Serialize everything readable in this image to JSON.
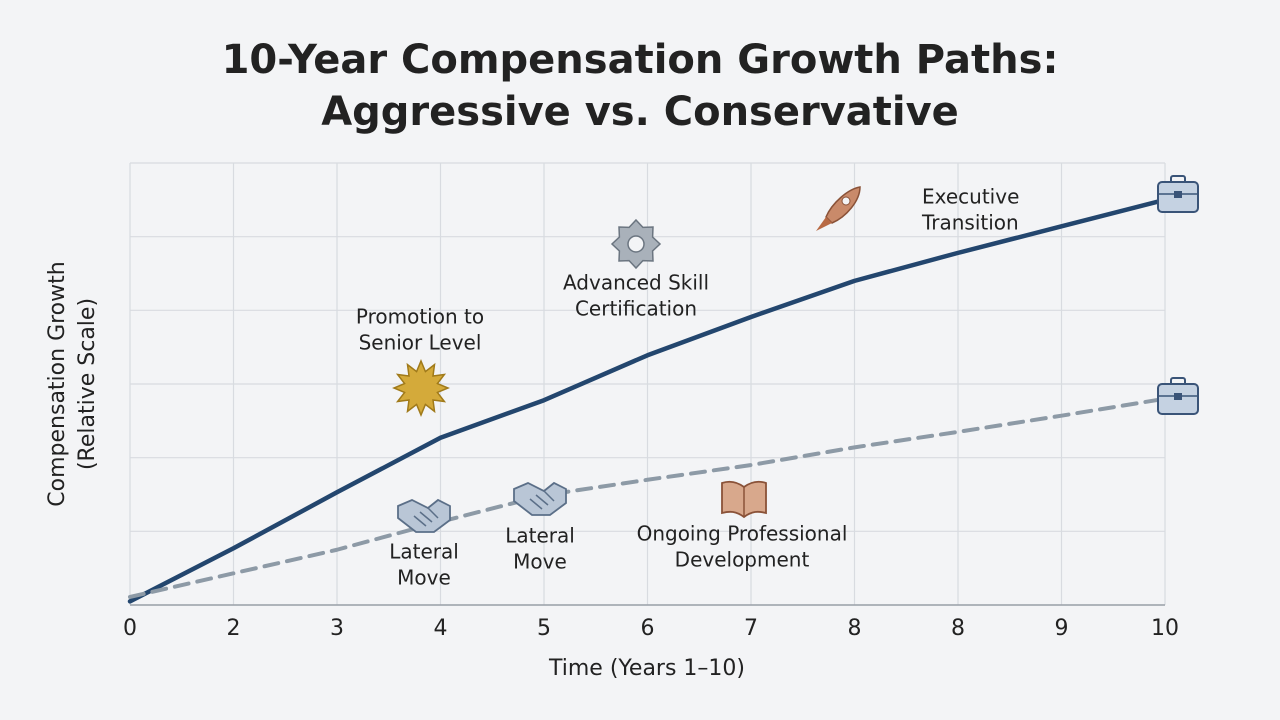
{
  "chart_data": {
    "type": "line",
    "title": [
      "10-Year Compensation Growth Paths:",
      "Aggressive vs. Conservative"
    ],
    "x_label": "Time (Years 1–10)",
    "y_label": [
      "Compensation Growth",
      "(Relative Scale)"
    ],
    "categories": [
      "0",
      "2",
      "3",
      "4",
      "5",
      "6",
      "7",
      "8",
      "8",
      "9",
      "10"
    ],
    "series": [
      {
        "color": "#23466e",
        "style": "solid",
        "values": [
          0.05,
          0.77,
          1.53,
          2.27,
          2.78,
          3.39,
          3.91,
          4.4,
          4.78,
          5.14,
          5.5
        ]
      },
      {
        "color": "#8d9aa6",
        "style": "dashed",
        "values": [
          0.11,
          0.43,
          0.75,
          1.13,
          1.49,
          1.7,
          1.9,
          2.14,
          2.35,
          2.57,
          2.8
        ]
      }
    ],
    "ylim": [
      0,
      6
    ],
    "yticks": [
      0,
      1,
      2,
      3,
      4,
      5,
      6
    ],
    "ytick_labels": false,
    "grid": true,
    "annotations": [
      [
        "Promotion to",
        "Senior Level"
      ],
      [
        "Advanced Skill",
        "Certification"
      ],
      [
        "Executive",
        "Transition"
      ],
      [
        "Lateral",
        "Move"
      ],
      [
        "Lateral",
        "Move"
      ],
      [
        "Ongoing Professional",
        "Development"
      ]
    ]
  }
}
